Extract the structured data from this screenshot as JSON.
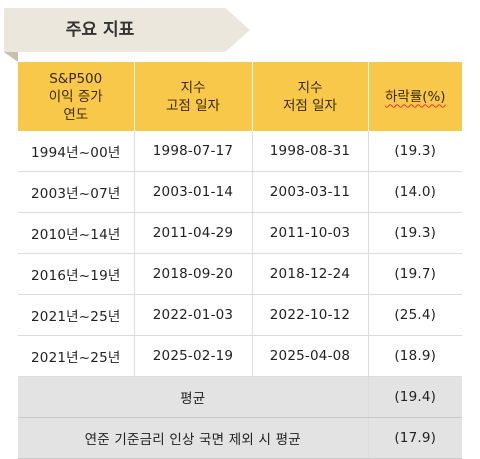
{
  "title": "주요 지표",
  "headers": [
    "S&P500\n이익 증가\n연도",
    "지수\n고점 일자",
    "지수\n저점 일자",
    "하락률(%)"
  ],
  "rows": [
    {
      "period": "1994년~00년",
      "peak": "1998-07-17",
      "trough": "1998-08-31",
      "decline": "(19.3)"
    },
    {
      "period": "2003년~07년",
      "peak": "2003-01-14",
      "trough": "2003-03-11",
      "decline": "(14.0)"
    },
    {
      "period": "2010년~14년",
      "peak": "2011-04-29",
      "trough": "2011-10-03",
      "decline": "(19.3)"
    },
    {
      "period": "2016년~19년",
      "peak": "2018-09-20",
      "trough": "2018-12-24",
      "decline": "(19.7)"
    },
    {
      "period": "2021년~25년",
      "peak": "2022-01-03",
      "trough": "2022-10-12",
      "decline": "(25.4)"
    },
    {
      "period": "2021년~25년",
      "peak": "2025-02-19",
      "trough": "2025-04-08",
      "decline": "(18.9)"
    }
  ],
  "summary": [
    {
      "label": "평균",
      "value": "(19.4)"
    },
    {
      "label": "연준 기준금리 인상 국면 제외 시 평균",
      "value": "(17.9)"
    }
  ]
}
